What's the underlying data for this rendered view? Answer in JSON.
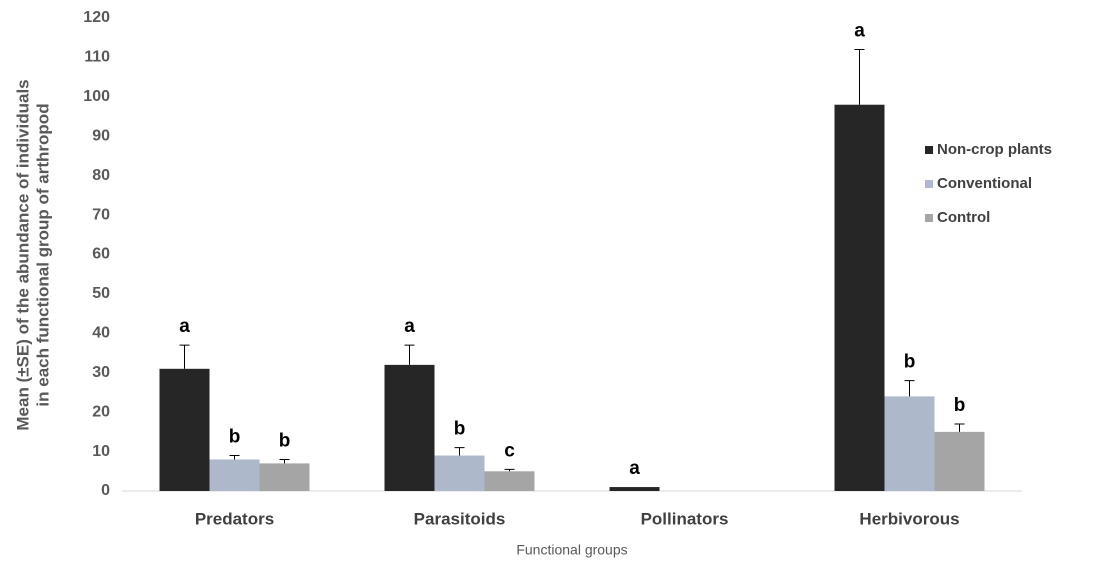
{
  "chart_data": {
    "type": "bar",
    "ylabel": [
      "Mean (±SE) of the abundance of individuals",
      "in each functional group of arthropod"
    ],
    "xlabel": "Functional groups",
    "categories": [
      "Predators",
      "Parasitoids",
      "Pollinators",
      "Herbivorous"
    ],
    "series": [
      {
        "name": "Non-crop plants",
        "color": "#262626",
        "values": [
          31,
          32,
          1,
          98
        ],
        "errors": [
          6,
          5,
          0,
          14
        ],
        "letters": [
          "a",
          "a",
          "a",
          "a"
        ]
      },
      {
        "name": "Conventional",
        "color": "#adb9ca",
        "values": [
          8,
          9,
          0,
          24
        ],
        "errors": [
          1,
          2,
          0,
          4
        ],
        "letters": [
          "b",
          "b",
          null,
          "b"
        ]
      },
      {
        "name": "Control",
        "color": "#a5a5a5",
        "values": [
          7,
          5,
          0,
          15
        ],
        "errors": [
          1,
          0.5,
          0,
          2
        ],
        "letters": [
          "b",
          "c",
          null,
          "b"
        ]
      }
    ],
    "ylim": [
      0,
      120
    ],
    "yticks": [
      0,
      10,
      20,
      30,
      40,
      50,
      60,
      70,
      80,
      90,
      100,
      110,
      120
    ],
    "grid": false,
    "legend": "right"
  }
}
